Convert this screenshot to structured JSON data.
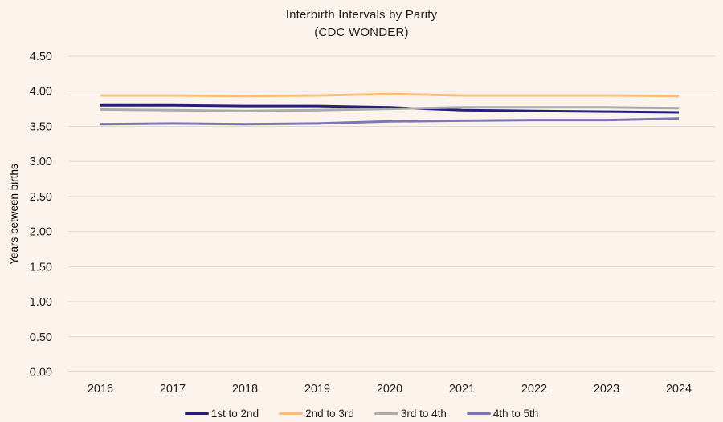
{
  "colors": {
    "background": "#fdf3ed",
    "gridline": "#dcdad6",
    "text": "#1c1c1c"
  },
  "chart_data": {
    "type": "line",
    "title": "Interbirth Intervals by Parity",
    "subtitle": "(CDC WONDER)",
    "xlabel": "",
    "ylabel": "Years between births",
    "x": [
      2016,
      2017,
      2018,
      2019,
      2020,
      2021,
      2022,
      2023,
      2024
    ],
    "series": [
      {
        "name": "1st to 2nd",
        "color": "#252077",
        "values": [
          3.8,
          3.8,
          3.79,
          3.79,
          3.77,
          3.73,
          3.72,
          3.71,
          3.7
        ]
      },
      {
        "name": "2nd to 3rd",
        "color": "#fbbd7d",
        "values": [
          3.94,
          3.94,
          3.93,
          3.94,
          3.96,
          3.94,
          3.94,
          3.94,
          3.93
        ]
      },
      {
        "name": "3rd to 4th",
        "color": "#ababab",
        "values": [
          3.74,
          3.73,
          3.72,
          3.73,
          3.75,
          3.77,
          3.77,
          3.77,
          3.76
        ]
      },
      {
        "name": "4th to 5th",
        "color": "#7b76b4",
        "values": [
          3.53,
          3.54,
          3.53,
          3.54,
          3.57,
          3.58,
          3.59,
          3.59,
          3.61
        ]
      }
    ],
    "ylim": [
      0,
      4.5
    ],
    "yticks": [
      0,
      0.5,
      1,
      1.5,
      2,
      2.5,
      3,
      3.5,
      4,
      4.5
    ],
    "ytick_labels": [
      "0.00",
      "0.50",
      "1.00",
      "1.50",
      "2.00",
      "2.50",
      "3.00",
      "3.50",
      "4.00",
      "4.50"
    ],
    "grid": true,
    "legend_position": "bottom"
  }
}
